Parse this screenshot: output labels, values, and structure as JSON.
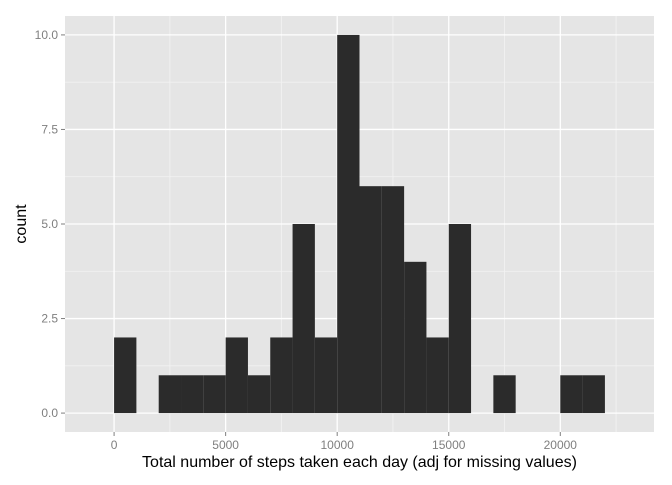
{
  "chart_data": {
    "type": "bar",
    "title": "",
    "xlabel": "Total number of steps taken each day (adj for missing values)",
    "ylabel": "count",
    "bin_width": 1000,
    "bins": [
      {
        "start": 0,
        "end": 1000,
        "count": 2
      },
      {
        "start": 1000,
        "end": 2000,
        "count": 0
      },
      {
        "start": 2000,
        "end": 3000,
        "count": 1
      },
      {
        "start": 3000,
        "end": 4000,
        "count": 1
      },
      {
        "start": 4000,
        "end": 5000,
        "count": 1
      },
      {
        "start": 5000,
        "end": 6000,
        "count": 2
      },
      {
        "start": 6000,
        "end": 7000,
        "count": 1
      },
      {
        "start": 7000,
        "end": 8000,
        "count": 2
      },
      {
        "start": 8000,
        "end": 9000,
        "count": 5
      },
      {
        "start": 9000,
        "end": 10000,
        "count": 2
      },
      {
        "start": 10000,
        "end": 11000,
        "count": 10
      },
      {
        "start": 11000,
        "end": 12000,
        "count": 6
      },
      {
        "start": 12000,
        "end": 13000,
        "count": 6
      },
      {
        "start": 13000,
        "end": 14000,
        "count": 4
      },
      {
        "start": 14000,
        "end": 15000,
        "count": 2
      },
      {
        "start": 15000,
        "end": 16000,
        "count": 5
      },
      {
        "start": 16000,
        "end": 17000,
        "count": 0
      },
      {
        "start": 17000,
        "end": 18000,
        "count": 1
      },
      {
        "start": 18000,
        "end": 19000,
        "count": 0
      },
      {
        "start": 19000,
        "end": 20000,
        "count": 0
      },
      {
        "start": 20000,
        "end": 21000,
        "count": 1
      },
      {
        "start": 21000,
        "end": 22000,
        "count": 1
      }
    ],
    "xlim": [
      -2200,
      24200
    ],
    "ylim": [
      -0.5,
      10.5
    ],
    "x_ticks": [
      0,
      5000,
      10000,
      15000,
      20000
    ],
    "x_tick_labels": [
      "0",
      "5000",
      "10000",
      "15000",
      "20000"
    ],
    "y_ticks": [
      0,
      2.5,
      5,
      7.5,
      10
    ],
    "y_tick_labels": [
      "0.0",
      "2.5",
      "5.0",
      "7.5",
      "10.0"
    ],
    "grid": true,
    "legend": "none",
    "colors": {
      "panel_background": "#e5e5e5",
      "grid_major": "#ffffff",
      "grid_minor": "#f2f2f2",
      "bar_fill": "#2b2b2b",
      "tick_text": "#7f7f7f",
      "axis_title": "#000000"
    }
  }
}
